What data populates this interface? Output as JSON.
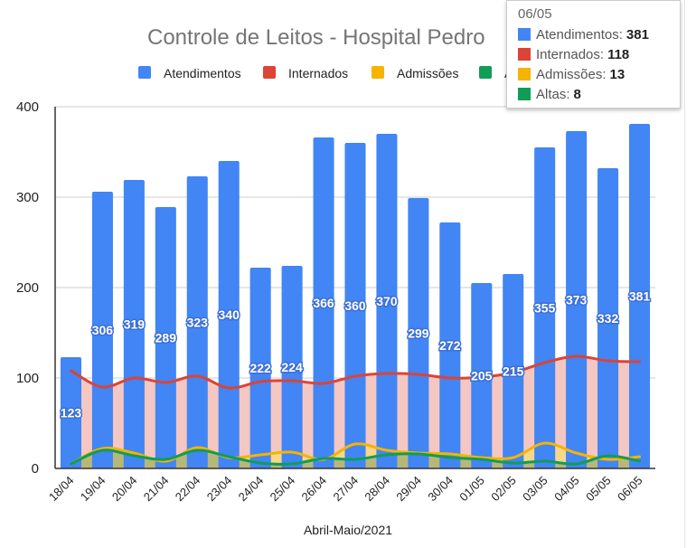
{
  "chart_data": {
    "type": "bar",
    "title": "Controle de Leitos -  Hospital Pedro",
    "xlabel": "Abril-Maio/2021",
    "ylabel": "",
    "ylim": [
      0,
      400
    ],
    "yticks": [
      0,
      100,
      200,
      300,
      400
    ],
    "grid": true,
    "legend_position": "top",
    "categories": [
      "18/04",
      "19/04",
      "20/04",
      "21/04",
      "22/04",
      "23/04",
      "24/04",
      "25/04",
      "26/04",
      "27/04",
      "28/04",
      "29/04",
      "30/04",
      "01/05",
      "02/05",
      "03/05",
      "04/05",
      "05/05",
      "06/05"
    ],
    "series": [
      {
        "name": "Atendimentos",
        "kind": "bar",
        "color": "#4285f4",
        "data_labels": true,
        "values": [
          123,
          306,
          319,
          289,
          323,
          340,
          222,
          224,
          366,
          360,
          370,
          299,
          272,
          205,
          215,
          355,
          373,
          332,
          381
        ]
      },
      {
        "name": "Internados",
        "kind": "area-line",
        "color": "#db4437",
        "fill": "#f4c7c3",
        "values": [
          108,
          90,
          100,
          95,
          102,
          89,
          96,
          97,
          94,
          102,
          105,
          104,
          100,
          101,
          106,
          117,
          124,
          119,
          118
        ]
      },
      {
        "name": "Admissões",
        "kind": "area-line",
        "color": "#f4b400",
        "fill": "#f7d78a",
        "values": [
          5,
          22,
          17,
          8,
          23,
          12,
          15,
          18,
          10,
          27,
          20,
          17,
          16,
          12,
          12,
          28,
          17,
          10,
          13
        ]
      },
      {
        "name": "Altas",
        "kind": "area-line",
        "color": "#0f9d58",
        "fill": "#b8b77a",
        "values": [
          5,
          20,
          14,
          10,
          20,
          13,
          6,
          5,
          11,
          10,
          15,
          16,
          12,
          10,
          6,
          8,
          5,
          14,
          8
        ]
      }
    ]
  },
  "legend": {
    "items": [
      {
        "label": "Atendimentos",
        "color": "#4285f4"
      },
      {
        "label": "Internados",
        "color": "#db4437"
      },
      {
        "label": "Admissões",
        "color": "#f4b400"
      },
      {
        "label": "A",
        "color": "#0f9d58"
      }
    ]
  },
  "tooltip": {
    "title": "06/05",
    "rows": [
      {
        "label": "Atendimentos",
        "value": "381",
        "color": "#4285f4"
      },
      {
        "label": "Internados",
        "value": "118",
        "color": "#db4437"
      },
      {
        "label": "Admissões",
        "value": "13",
        "color": "#f4b400"
      },
      {
        "label": "Altas",
        "value": "8",
        "color": "#0f9d58"
      }
    ]
  }
}
